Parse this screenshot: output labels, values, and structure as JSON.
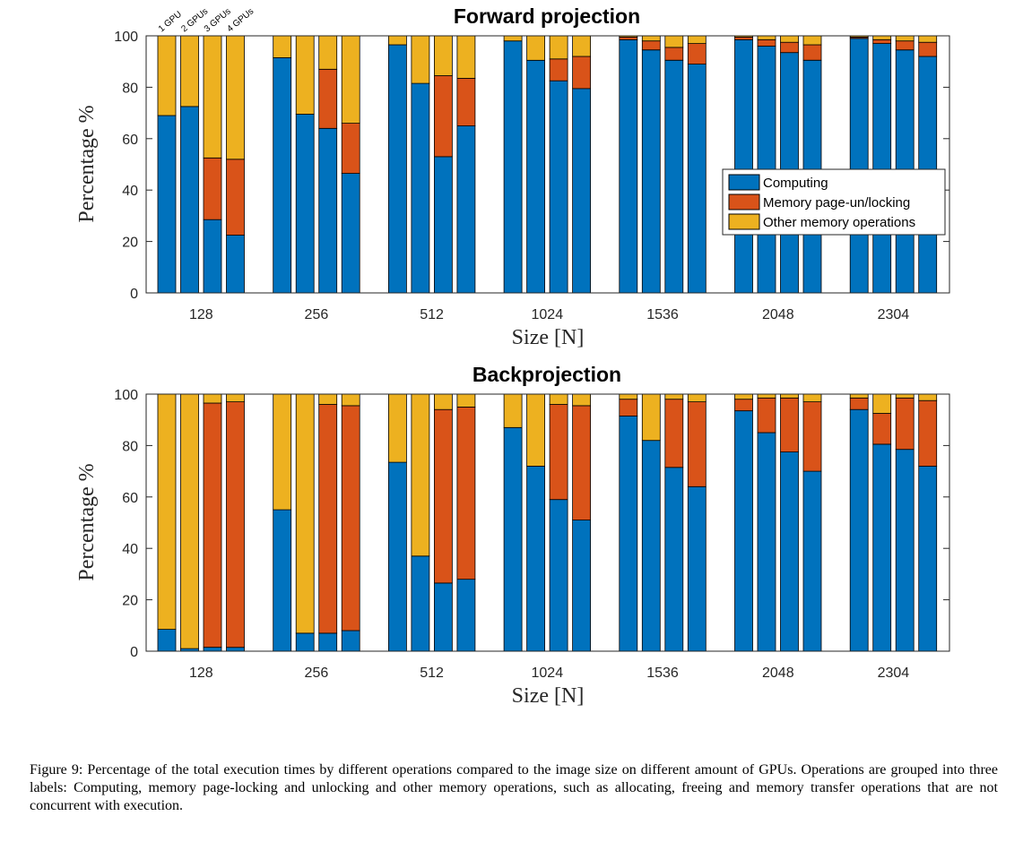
{
  "caption": "Figure 9: Percentage of the total execution times by different operations compared to the image size on different amount of GPUs. Operations are grouped into three labels: Computing, memory page-locking and unlocking and other memory operations, such as allocating, freeing and memory transfer operations that are not concurrent with execution.",
  "colors": {
    "computing": "#0072BD",
    "locking": "#D95319",
    "other": "#EDB120"
  },
  "gpu_labels": [
    "1 GPU",
    "2 GPUs",
    "3 GPUs",
    "4 GPUs"
  ],
  "legend": [
    "Computing",
    "Memory page-un/locking",
    "Other memory operations"
  ],
  "chart_data": [
    {
      "type": "bar",
      "stacked": true,
      "title": "Forward projection",
      "xlabel": "Size [N]",
      "ylabel": "Percentage %",
      "ylim": [
        0,
        100
      ],
      "yticks": [
        0,
        20,
        40,
        60,
        80,
        100
      ],
      "categories": [
        "128",
        "256",
        "512",
        "1024",
        "1536",
        "2048",
        "2304"
      ],
      "gpus": [
        "1 GPU",
        "2 GPUs",
        "3 GPUs",
        "4 GPUs"
      ],
      "legend_position": "right",
      "series": [
        {
          "name": "Computing",
          "values": [
            [
              69,
              72.5,
              28.5,
              22.5
            ],
            [
              91.5,
              69.5,
              64,
              46.5
            ],
            [
              96.5,
              81.5,
              53,
              65
            ],
            [
              98,
              90.5,
              82.5,
              79.5
            ],
            [
              98.5,
              94.5,
              90.5,
              89
            ],
            [
              98.5,
              96,
              93.5,
              90.5
            ],
            [
              99,
              97,
              94.5,
              92
            ]
          ]
        },
        {
          "name": "Memory page-un/locking",
          "values": [
            [
              0,
              0,
              24,
              29.5
            ],
            [
              0,
              0,
              23,
              19.5
            ],
            [
              0,
              0,
              31.5,
              18.5
            ],
            [
              0,
              0,
              8.5,
              12.5
            ],
            [
              1,
              3.5,
              5,
              8
            ],
            [
              1,
              2.5,
              4,
              6
            ],
            [
              0.5,
              1.5,
              3.5,
              5.5
            ]
          ]
        },
        {
          "name": "Other memory operations",
          "values": [
            [
              31,
              27.5,
              47.5,
              48
            ],
            [
              8.5,
              30.5,
              13,
              34
            ],
            [
              3.5,
              18.5,
              15.5,
              16.5
            ],
            [
              2,
              9.5,
              9,
              8
            ],
            [
              0.5,
              2,
              4.5,
              3
            ],
            [
              0.5,
              1.5,
              2.5,
              3.5
            ],
            [
              0.5,
              1.5,
              2,
              2.5
            ]
          ]
        }
      ]
    },
    {
      "type": "bar",
      "stacked": true,
      "title": "Backprojection",
      "xlabel": "Size [N]",
      "ylabel": "Percentage %",
      "ylim": [
        0,
        100
      ],
      "yticks": [
        0,
        20,
        40,
        60,
        80,
        100
      ],
      "categories": [
        "128",
        "256",
        "512",
        "1024",
        "1536",
        "2048",
        "2304"
      ],
      "gpus": [
        "1 GPU",
        "2 GPUs",
        "3 GPUs",
        "4 GPUs"
      ],
      "series": [
        {
          "name": "Computing",
          "values": [
            [
              8.5,
              1,
              1.5,
              1.5
            ],
            [
              55,
              7,
              7,
              8
            ],
            [
              73.5,
              37,
              26.5,
              28
            ],
            [
              87,
              72,
              59,
              51
            ],
            [
              91.5,
              82,
              71.5,
              64
            ],
            [
              93.5,
              85,
              77.5,
              70
            ],
            [
              94,
              80.5,
              78.5,
              72
            ]
          ]
        },
        {
          "name": "Memory page-un/locking",
          "values": [
            [
              0,
              0,
              95,
              95.5
            ],
            [
              0,
              0,
              89,
              87.5
            ],
            [
              0,
              0,
              67.5,
              67
            ],
            [
              0,
              0,
              37,
              44.5
            ],
            [
              6.5,
              0,
              26.5,
              33
            ],
            [
              4.5,
              13.5,
              21,
              27
            ],
            [
              4.5,
              12,
              20,
              25.5
            ]
          ]
        },
        {
          "name": "Other memory operations",
          "values": [
            [
              91.5,
              99,
              3.5,
              3
            ],
            [
              45,
              93,
              4,
              4.5
            ],
            [
              26.5,
              63,
              6,
              5
            ],
            [
              13,
              28,
              4,
              4.5
            ],
            [
              2,
              18,
              2,
              3
            ],
            [
              2,
              1.5,
              1.5,
              3
            ],
            [
              1.5,
              7.5,
              1.5,
              2.5
            ]
          ]
        }
      ]
    }
  ]
}
